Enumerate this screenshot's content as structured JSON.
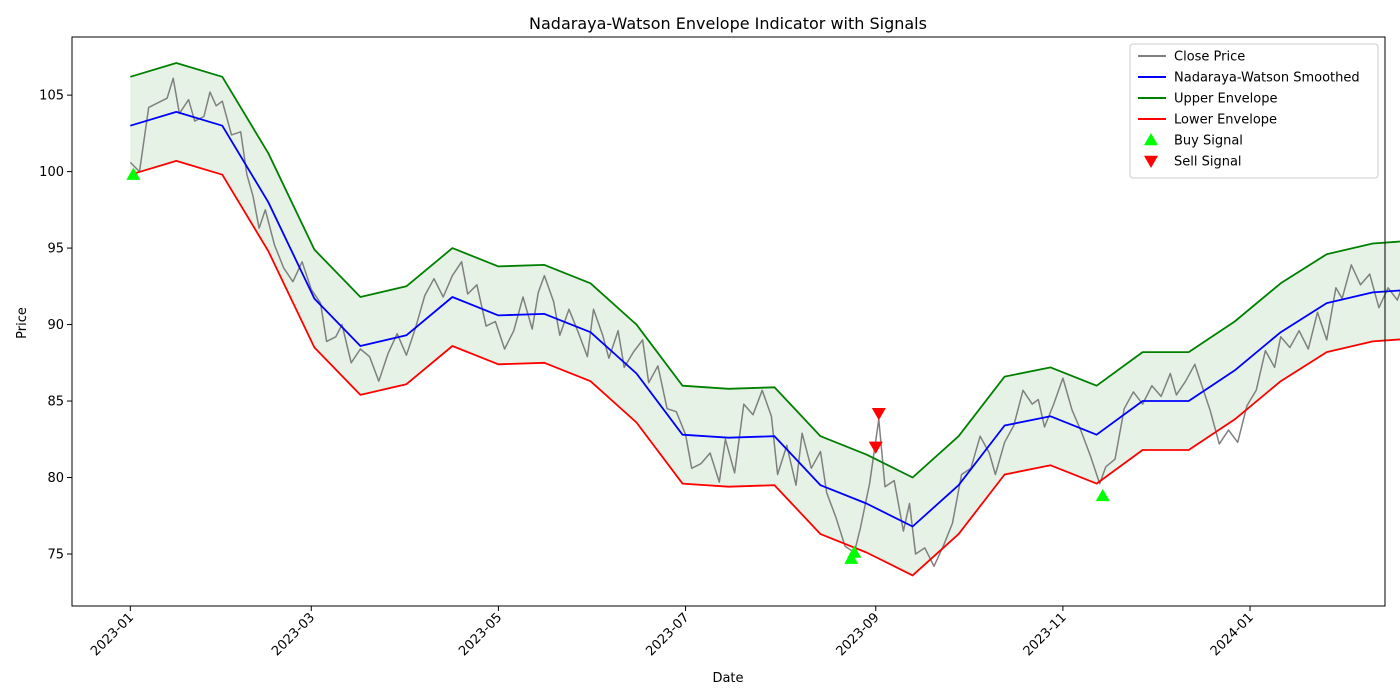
{
  "chart_data": {
    "type": "line",
    "title": "Nadaraya-Watson Envelope Indicator with Signals",
    "xlabel": "Date",
    "ylabel": "Price",
    "x_range": [
      "2022-12-13",
      "2024-02-14"
    ],
    "ylim": [
      71.6,
      108.8
    ],
    "x_ticks": [
      "2023-01",
      "2023-03",
      "2023-05",
      "2023-07",
      "2023-09",
      "2023-11",
      "2024-01"
    ],
    "y_ticks": [
      75,
      80,
      85,
      90,
      95,
      100,
      105
    ],
    "legend_position": "top-right",
    "grid": false,
    "fill_between": {
      "between": [
        "Upper Envelope",
        "Lower Envelope"
      ],
      "color": "#008000",
      "opacity": 0.1
    },
    "series": [
      {
        "name": "Close Price",
        "color": "#808080",
        "points": [
          [
            "2023-01-01",
            100.6
          ],
          [
            "2023-01-04",
            100.0
          ],
          [
            "2023-01-07",
            104.2
          ],
          [
            "2023-01-10",
            104.5
          ],
          [
            "2023-01-13",
            104.8
          ],
          [
            "2023-01-15",
            106.1
          ],
          [
            "2023-01-17",
            103.8
          ],
          [
            "2023-01-20",
            104.7
          ],
          [
            "2023-01-22",
            103.3
          ],
          [
            "2023-01-25",
            103.6
          ],
          [
            "2023-01-27",
            105.2
          ],
          [
            "2023-01-29",
            104.3
          ],
          [
            "2023-01-31",
            104.6
          ],
          [
            "2023-02-03",
            102.4
          ],
          [
            "2023-02-06",
            102.6
          ],
          [
            "2023-02-08",
            99.8
          ],
          [
            "2023-02-10",
            98.4
          ],
          [
            "2023-02-12",
            96.3
          ],
          [
            "2023-02-14",
            97.5
          ],
          [
            "2023-02-17",
            95.2
          ],
          [
            "2023-02-20",
            93.7
          ],
          [
            "2023-02-23",
            92.8
          ],
          [
            "2023-02-26",
            94.1
          ],
          [
            "2023-03-01",
            92.3
          ],
          [
            "2023-03-04",
            91.4
          ],
          [
            "2023-03-06",
            88.9
          ],
          [
            "2023-03-09",
            89.2
          ],
          [
            "2023-03-11",
            90.0
          ],
          [
            "2023-03-14",
            87.5
          ],
          [
            "2023-03-17",
            88.4
          ],
          [
            "2023-03-20",
            87.9
          ],
          [
            "2023-03-23",
            86.3
          ],
          [
            "2023-03-26",
            88.1
          ],
          [
            "2023-03-29",
            89.4
          ],
          [
            "2023-04-01",
            88.0
          ],
          [
            "2023-04-04",
            89.8
          ],
          [
            "2023-04-07",
            91.9
          ],
          [
            "2023-04-10",
            93.0
          ],
          [
            "2023-04-13",
            91.8
          ],
          [
            "2023-04-16",
            93.2
          ],
          [
            "2023-04-19",
            94.1
          ],
          [
            "2023-04-21",
            92.0
          ],
          [
            "2023-04-24",
            92.6
          ],
          [
            "2023-04-27",
            89.9
          ],
          [
            "2023-04-30",
            90.2
          ],
          [
            "2023-05-03",
            88.4
          ],
          [
            "2023-05-06",
            89.6
          ],
          [
            "2023-05-09",
            91.8
          ],
          [
            "2023-05-12",
            89.7
          ],
          [
            "2023-05-14",
            92.1
          ],
          [
            "2023-05-16",
            93.2
          ],
          [
            "2023-05-19",
            91.5
          ],
          [
            "2023-05-21",
            89.3
          ],
          [
            "2023-05-24",
            91.0
          ],
          [
            "2023-05-27",
            89.5
          ],
          [
            "2023-05-30",
            87.9
          ],
          [
            "2023-06-01",
            91.0
          ],
          [
            "2023-06-04",
            89.3
          ],
          [
            "2023-06-06",
            87.8
          ],
          [
            "2023-06-09",
            89.6
          ],
          [
            "2023-06-11",
            87.2
          ],
          [
            "2023-06-14",
            88.2
          ],
          [
            "2023-06-17",
            89.0
          ],
          [
            "2023-06-19",
            86.2
          ],
          [
            "2023-06-22",
            87.3
          ],
          [
            "2023-06-25",
            84.5
          ],
          [
            "2023-06-28",
            84.3
          ],
          [
            "2023-07-01",
            82.8
          ],
          [
            "2023-07-03",
            80.6
          ],
          [
            "2023-07-06",
            80.9
          ],
          [
            "2023-07-09",
            81.6
          ],
          [
            "2023-07-12",
            79.7
          ],
          [
            "2023-07-14",
            82.5
          ],
          [
            "2023-07-17",
            80.3
          ],
          [
            "2023-07-20",
            84.8
          ],
          [
            "2023-07-23",
            84.1
          ],
          [
            "2023-07-26",
            85.7
          ],
          [
            "2023-07-29",
            84.0
          ],
          [
            "2023-07-31",
            80.2
          ],
          [
            "2023-08-03",
            82.1
          ],
          [
            "2023-08-06",
            79.5
          ],
          [
            "2023-08-08",
            82.9
          ],
          [
            "2023-08-11",
            80.6
          ],
          [
            "2023-08-14",
            81.7
          ],
          [
            "2023-08-16",
            79.0
          ],
          [
            "2023-08-19",
            77.4
          ],
          [
            "2023-08-22",
            75.5
          ],
          [
            "2023-08-25",
            75.1
          ],
          [
            "2023-08-27",
            76.7
          ],
          [
            "2023-08-30",
            79.6
          ],
          [
            "2023-09-02",
            83.8
          ],
          [
            "2023-09-04",
            79.4
          ],
          [
            "2023-09-07",
            79.8
          ],
          [
            "2023-09-10",
            76.5
          ],
          [
            "2023-09-12",
            78.3
          ],
          [
            "2023-09-14",
            75.0
          ],
          [
            "2023-09-17",
            75.4
          ],
          [
            "2023-09-20",
            74.2
          ],
          [
            "2023-09-23",
            75.5
          ],
          [
            "2023-09-26",
            77.0
          ],
          [
            "2023-09-29",
            80.2
          ],
          [
            "2023-10-02",
            80.6
          ],
          [
            "2023-10-05",
            82.7
          ],
          [
            "2023-10-08",
            81.6
          ],
          [
            "2023-10-10",
            80.2
          ],
          [
            "2023-10-13",
            82.3
          ],
          [
            "2023-10-16",
            83.4
          ],
          [
            "2023-10-19",
            85.7
          ],
          [
            "2023-10-22",
            84.8
          ],
          [
            "2023-10-24",
            85.1
          ],
          [
            "2023-10-26",
            83.3
          ],
          [
            "2023-10-29",
            84.8
          ],
          [
            "2023-11-01",
            86.5
          ],
          [
            "2023-11-04",
            84.4
          ],
          [
            "2023-11-07",
            83.0
          ],
          [
            "2023-11-10",
            81.4
          ],
          [
            "2023-11-13",
            79.6
          ],
          [
            "2023-11-15",
            80.7
          ],
          [
            "2023-11-18",
            81.2
          ],
          [
            "2023-11-21",
            84.5
          ],
          [
            "2023-11-24",
            85.6
          ],
          [
            "2023-11-27",
            84.8
          ],
          [
            "2023-11-30",
            86.0
          ],
          [
            "2023-12-03",
            85.3
          ],
          [
            "2023-12-06",
            86.8
          ],
          [
            "2023-12-08",
            85.4
          ],
          [
            "2023-12-11",
            86.3
          ],
          [
            "2023-12-14",
            87.4
          ],
          [
            "2023-12-16",
            86.2
          ],
          [
            "2023-12-19",
            84.4
          ],
          [
            "2023-12-22",
            82.2
          ],
          [
            "2023-12-25",
            83.1
          ],
          [
            "2023-12-28",
            82.3
          ],
          [
            "2023-12-31",
            84.7
          ],
          [
            "2024-01-03",
            85.7
          ],
          [
            "2024-01-06",
            88.3
          ],
          [
            "2024-01-09",
            87.2
          ],
          [
            "2024-01-11",
            89.2
          ],
          [
            "2024-01-14",
            88.5
          ],
          [
            "2024-01-17",
            89.6
          ],
          [
            "2024-01-20",
            88.4
          ],
          [
            "2024-01-23",
            90.8
          ],
          [
            "2024-01-26",
            89.0
          ],
          [
            "2024-01-29",
            92.4
          ],
          [
            "2024-01-31",
            91.7
          ],
          [
            "2024-02-03",
            93.9
          ],
          [
            "2024-02-06",
            92.6
          ],
          [
            "2024-02-09",
            93.3
          ],
          [
            "2024-02-12",
            91.1
          ],
          [
            "2024-02-15",
            92.4
          ],
          [
            "2024-02-18",
            91.6
          ],
          [
            "2024-02-21",
            93.3
          ],
          [
            "2024-02-24",
            93.0
          ]
        ]
      },
      {
        "name": "Nadaraya-Watson Smoothed",
        "color": "#0000ff",
        "points": [
          [
            "2023-01-01",
            103.0
          ],
          [
            "2023-01-16",
            103.9
          ],
          [
            "2023-01-31",
            103.0
          ],
          [
            "2023-02-15",
            98.0
          ],
          [
            "2023-03-02",
            91.7
          ],
          [
            "2023-03-17",
            88.6
          ],
          [
            "2023-04-01",
            89.3
          ],
          [
            "2023-04-16",
            91.8
          ],
          [
            "2023-05-01",
            90.6
          ],
          [
            "2023-05-16",
            90.7
          ],
          [
            "2023-05-31",
            89.5
          ],
          [
            "2023-06-15",
            86.8
          ],
          [
            "2023-06-30",
            82.8
          ],
          [
            "2023-07-15",
            82.6
          ],
          [
            "2023-07-30",
            82.7
          ],
          [
            "2023-08-14",
            79.5
          ],
          [
            "2023-08-29",
            78.3
          ],
          [
            "2023-09-13",
            76.8
          ],
          [
            "2023-09-28",
            79.5
          ],
          [
            "2023-10-13",
            83.4
          ],
          [
            "2023-10-28",
            84.0
          ],
          [
            "2023-11-12",
            82.8
          ],
          [
            "2023-11-27",
            85.0
          ],
          [
            "2023-12-12",
            85.0
          ],
          [
            "2023-12-27",
            87.0
          ],
          [
            "2024-01-11",
            89.5
          ],
          [
            "2024-01-26",
            91.4
          ],
          [
            "2024-02-10",
            92.1
          ],
          [
            "2024-02-24",
            92.3
          ]
        ]
      },
      {
        "name": "Upper Envelope",
        "color": "#008000",
        "points": [
          [
            "2023-01-01",
            106.2
          ],
          [
            "2023-01-16",
            107.1
          ],
          [
            "2023-01-31",
            106.2
          ],
          [
            "2023-02-15",
            101.2
          ],
          [
            "2023-03-02",
            94.9
          ],
          [
            "2023-03-17",
            91.8
          ],
          [
            "2023-04-01",
            92.5
          ],
          [
            "2023-04-16",
            95.0
          ],
          [
            "2023-05-01",
            93.8
          ],
          [
            "2023-05-16",
            93.9
          ],
          [
            "2023-05-31",
            92.7
          ],
          [
            "2023-06-15",
            90.0
          ],
          [
            "2023-06-30",
            86.0
          ],
          [
            "2023-07-15",
            85.8
          ],
          [
            "2023-07-30",
            85.9
          ],
          [
            "2023-08-14",
            82.7
          ],
          [
            "2023-08-29",
            81.5
          ],
          [
            "2023-09-13",
            80.0
          ],
          [
            "2023-09-28",
            82.7
          ],
          [
            "2023-10-13",
            86.6
          ],
          [
            "2023-10-28",
            87.2
          ],
          [
            "2023-11-12",
            86.0
          ],
          [
            "2023-11-27",
            88.2
          ],
          [
            "2023-12-12",
            88.2
          ],
          [
            "2023-12-27",
            90.2
          ],
          [
            "2024-01-11",
            92.7
          ],
          [
            "2024-01-26",
            94.6
          ],
          [
            "2024-02-10",
            95.3
          ],
          [
            "2024-02-24",
            95.5
          ]
        ]
      },
      {
        "name": "Lower Envelope",
        "color": "#ff0000",
        "points": [
          [
            "2023-01-01",
            99.8
          ],
          [
            "2023-01-16",
            100.7
          ],
          [
            "2023-01-31",
            99.8
          ],
          [
            "2023-02-15",
            94.8
          ],
          [
            "2023-03-02",
            88.5
          ],
          [
            "2023-03-17",
            85.4
          ],
          [
            "2023-04-01",
            86.1
          ],
          [
            "2023-04-16",
            88.6
          ],
          [
            "2023-05-01",
            87.4
          ],
          [
            "2023-05-16",
            87.5
          ],
          [
            "2023-05-31",
            86.3
          ],
          [
            "2023-06-15",
            83.6
          ],
          [
            "2023-06-30",
            79.6
          ],
          [
            "2023-07-15",
            79.4
          ],
          [
            "2023-07-30",
            79.5
          ],
          [
            "2023-08-14",
            76.3
          ],
          [
            "2023-08-29",
            75.1
          ],
          [
            "2023-09-13",
            73.6
          ],
          [
            "2023-09-28",
            76.3
          ],
          [
            "2023-10-13",
            80.2
          ],
          [
            "2023-10-28",
            80.8
          ],
          [
            "2023-11-12",
            79.6
          ],
          [
            "2023-11-27",
            81.8
          ],
          [
            "2023-12-12",
            81.8
          ],
          [
            "2023-12-27",
            83.8
          ],
          [
            "2024-01-11",
            86.3
          ],
          [
            "2024-01-26",
            88.2
          ],
          [
            "2024-02-10",
            88.9
          ],
          [
            "2024-02-24",
            89.1
          ]
        ]
      }
    ],
    "signals": [
      {
        "name": "Buy Signal",
        "color": "#00ff00",
        "marker": "triangle-up",
        "points": [
          [
            "2023-01-02",
            99.8
          ],
          [
            "2023-08-24",
            74.7
          ],
          [
            "2023-08-25",
            75.1
          ],
          [
            "2023-11-14",
            78.8
          ]
        ]
      },
      {
        "name": "Sell Signal",
        "color": "#ff0000",
        "marker": "triangle-down",
        "points": [
          [
            "2023-09-01",
            82.0
          ],
          [
            "2023-09-02",
            84.2
          ]
        ]
      }
    ]
  }
}
